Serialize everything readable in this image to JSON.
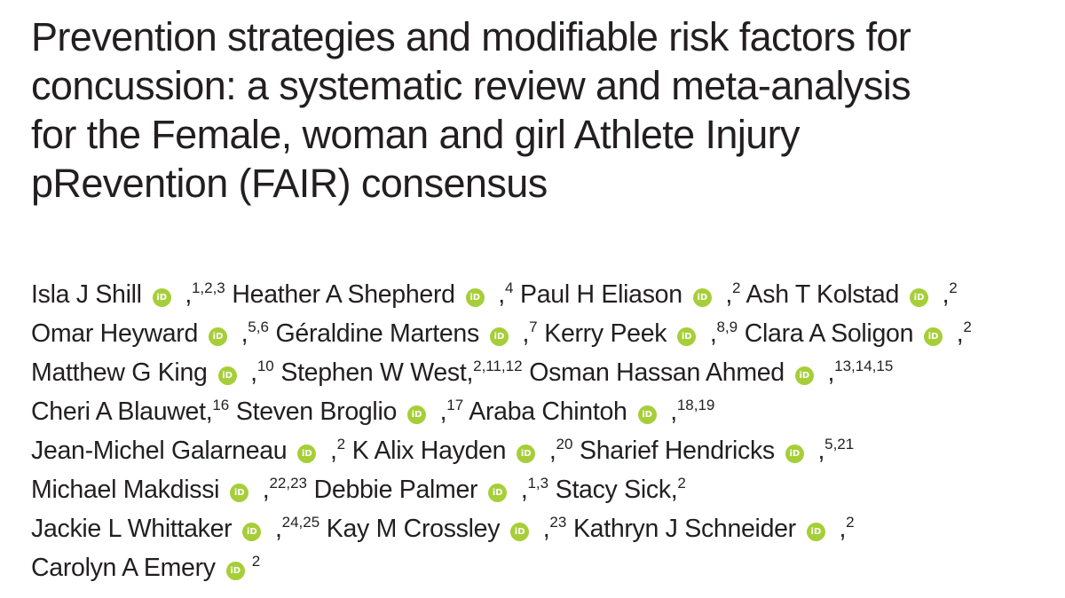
{
  "title": "Prevention strategies and modifiable risk factors for concussion: a systematic review and meta-analysis for the Female, woman and girl Athlete Injury pRevention (FAIR) consensus",
  "title_lines": [
    "Prevention strategies and modifiable risk factors for",
    "concussion: a systematic review and meta-analysis",
    "for the Female, woman and girl Athlete Injury",
    "pRevention (FAIR) consensus"
  ],
  "orcid_icon": {
    "name": "orcid-icon",
    "text": "iD",
    "color": "#a6ce39"
  },
  "author_lines": [
    [
      {
        "name": "Isla J Shill",
        "orcid": true,
        "sep": " ,",
        "aff": "1,2,3"
      },
      {
        "name": "Heather A Shepherd",
        "orcid": true,
        "sep": " ,",
        "aff": "4"
      },
      {
        "name": "Paul H Eliason",
        "orcid": true,
        "sep": " ,",
        "aff": "2"
      },
      {
        "name": "Ash T Kolstad",
        "orcid": true,
        "sep": " ,",
        "aff": "2"
      }
    ],
    [
      {
        "name": "Omar Heyward",
        "orcid": true,
        "sep": " ,",
        "aff": "5,6"
      },
      {
        "name": "Géraldine Martens",
        "orcid": true,
        "sep": " ,",
        "aff": "7"
      },
      {
        "name": "Kerry Peek",
        "orcid": true,
        "sep": " ,",
        "aff": "8,9"
      },
      {
        "name": "Clara A Soligon",
        "orcid": true,
        "sep": " ,",
        "aff": "2"
      }
    ],
    [
      {
        "name": "Matthew G King",
        "orcid": true,
        "sep": " ,",
        "aff": "10"
      },
      {
        "name": "Stephen W West,",
        "orcid": false,
        "sep": "",
        "aff": "2,11,12"
      },
      {
        "name": "Osman Hassan Ahmed",
        "orcid": true,
        "sep": " ,",
        "aff": "13,14,15"
      }
    ],
    [
      {
        "name": "Cheri A Blauwet,",
        "orcid": false,
        "sep": "",
        "aff": "16"
      },
      {
        "name": "Steven Broglio",
        "orcid": true,
        "sep": " ,",
        "aff": "17"
      },
      {
        "name": "Araba Chintoh",
        "orcid": true,
        "sep": " ,",
        "aff": "18,19"
      }
    ],
    [
      {
        "name": "Jean-Michel Galarneau",
        "orcid": true,
        "sep": " ,",
        "aff": "2"
      },
      {
        "name": "K Alix Hayden",
        "orcid": true,
        "sep": " ,",
        "aff": "20"
      },
      {
        "name": "Sharief Hendricks",
        "orcid": true,
        "sep": " ,",
        "aff": "5,21"
      }
    ],
    [
      {
        "name": "Michael Makdissi",
        "orcid": true,
        "sep": " ,",
        "aff": "22,23"
      },
      {
        "name": "Debbie Palmer",
        "orcid": true,
        "sep": " ,",
        "aff": "1,3"
      },
      {
        "name": "Stacy Sick,",
        "orcid": false,
        "sep": "",
        "aff": "2"
      }
    ],
    [
      {
        "name": "Jackie L Whittaker",
        "orcid": true,
        "sep": " ,",
        "aff": "24,25"
      },
      {
        "name": "Kay M Crossley",
        "orcid": true,
        "sep": " ,",
        "aff": "23"
      },
      {
        "name": "Kathryn J Schneider",
        "orcid": true,
        "sep": " ,",
        "aff": "2"
      }
    ],
    [
      {
        "name": "Carolyn A Emery",
        "orcid": true,
        "sep": "",
        "aff": "2"
      }
    ]
  ]
}
